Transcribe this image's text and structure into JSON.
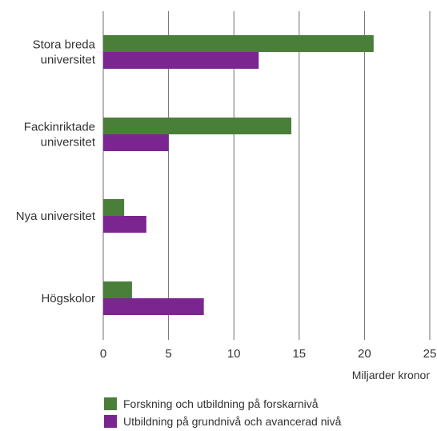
{
  "chart_data": {
    "type": "bar",
    "orientation": "horizontal",
    "categories": [
      [
        "Stora breda",
        "universitet"
      ],
      [
        "Fackinriktade",
        "universitet"
      ],
      [
        "Nya universitet"
      ],
      [
        "Högskolor"
      ]
    ],
    "series": [
      {
        "name": "Forskning och utbildning på forskarnivå",
        "color": "#4a7f3a",
        "values": [
          20.7,
          14.4,
          1.6,
          2.2
        ]
      },
      {
        "name": "Utbildning på grundnivå och avancerad nivå",
        "color": "#7b2590",
        "values": [
          11.9,
          5.0,
          3.3,
          7.7
        ]
      }
    ],
    "xlabel": "Miljarder kronor",
    "xlim": [
      0,
      25
    ],
    "xticks": [
      0,
      5,
      10,
      15,
      20,
      25
    ],
    "grid": "vertical",
    "legend_position": "bottom"
  }
}
